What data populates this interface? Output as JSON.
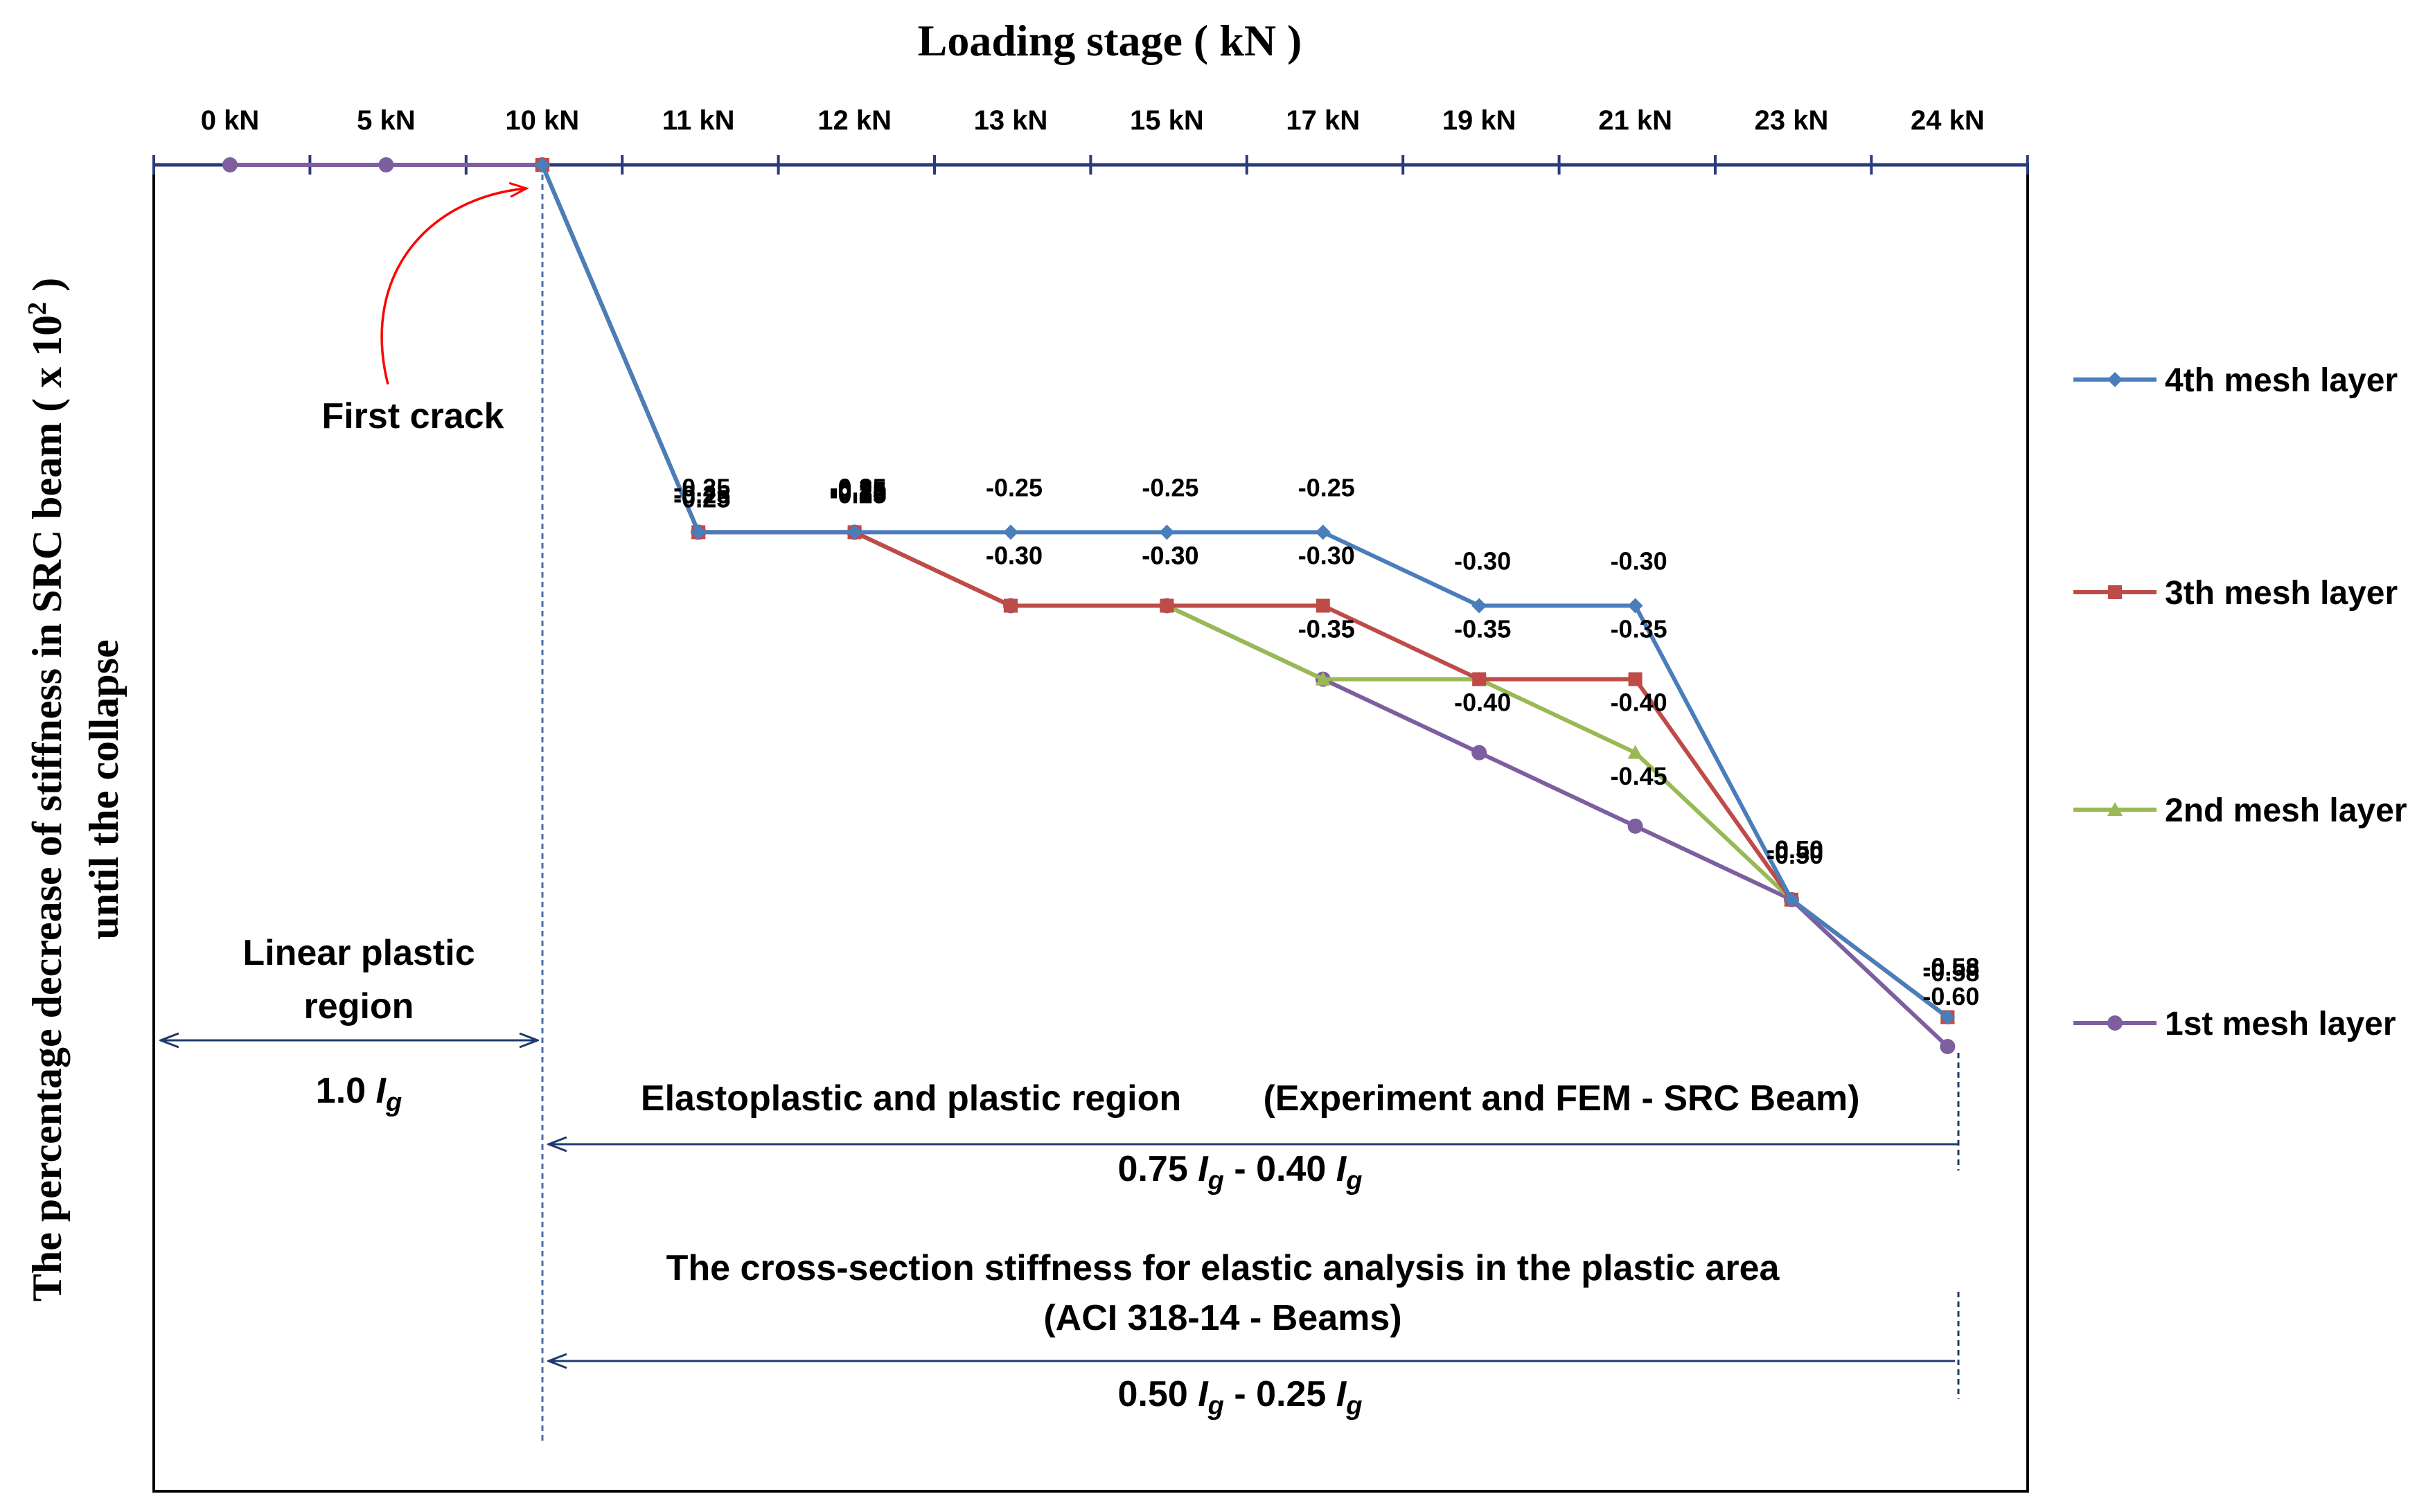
{
  "chart_data": {
    "type": "line",
    "title": "Loading stage  ( kN )",
    "ylabel": {
      "line1_pre": "The percentage decrease of stiffness in SRC beam ( x 10",
      "line1_sup": "2",
      "line1_post": " )",
      "line2": "until the collapse"
    },
    "categories": [
      "0 kN",
      "5 kN",
      "10 kN",
      "11 kN",
      "12 kN",
      "13 kN",
      "15 kN",
      "17 kN",
      "19 kN",
      "21 kN",
      "23 kN",
      "24 kN"
    ],
    "ylim": [
      -0.6,
      0
    ],
    "series": [
      {
        "name": "4th mesh layer",
        "color": "#4a7ebb",
        "marker": "diamond",
        "values": [
          null,
          null,
          0,
          -0.25,
          -0.25,
          -0.25,
          -0.25,
          -0.25,
          -0.3,
          -0.3,
          -0.5,
          -0.58
        ],
        "labels": [
          "",
          "",
          "",
          "-0.25",
          "-0.25",
          "-0.25",
          "-0.25",
          "-0.25",
          "-0.30",
          "-0.30",
          "-0.50",
          "-0.58"
        ]
      },
      {
        "name": "3th mesh layer",
        "color": "#be4b48",
        "marker": "square",
        "values": [
          null,
          null,
          0,
          -0.25,
          -0.25,
          -0.3,
          -0.3,
          -0.3,
          -0.35,
          -0.35,
          -0.5,
          -0.58
        ],
        "labels": [
          "",
          "",
          "",
          "-0.25",
          "-0.25",
          "-0.30",
          "-0.30",
          "-0.30",
          "-0.35",
          "-0.35",
          "-0.50",
          "-0.58"
        ]
      },
      {
        "name": "2nd mesh layer",
        "color": "#98b954",
        "marker": "triangle",
        "values": [
          null,
          null,
          0,
          -0.25,
          -0.25,
          -0.3,
          -0.3,
          -0.35,
          -0.35,
          -0.4,
          -0.5,
          -0.58
        ],
        "labels": [
          "",
          "",
          "",
          "-0.25",
          "-0.25",
          "-0.30",
          "-0.30",
          "-0.35",
          "-0.35",
          "-0.40",
          "-0.50",
          "-0.58"
        ]
      },
      {
        "name": "1st mesh layer",
        "color": "#7d5fa0",
        "marker": "circle",
        "values": [
          0,
          0,
          0,
          -0.25,
          -0.25,
          -0.3,
          -0.3,
          -0.35,
          -0.4,
          -0.45,
          -0.5,
          -0.6
        ],
        "labels": [
          "",
          "",
          "",
          "-0.25",
          "-0.25",
          "-0.30",
          "-0.30",
          "-0.35",
          "-0.40",
          "-0.45",
          "-0.50",
          "-0.60"
        ]
      }
    ],
    "annotations": {
      "first_crack": "First crack",
      "linear_region_line1": "Linear plastic",
      "linear_region_line2": "region",
      "linear_value": "1.0",
      "I_symbol": "I",
      "I_sub": "g",
      "elastoplastic_left": "Elastoplastic and plastic region",
      "elastoplastic_right": "(Experiment and FEM - SRC Beam)",
      "elastoplastic_value_a": "0.75",
      "elastoplastic_value_b": "0.40",
      "aci_line1": "The cross-section stiffness for elastic analysis in the plastic area",
      "aci_line2": "(ACI 318-14  -  Beams)",
      "aci_value_a": "0.50",
      "aci_value_b": "0.25",
      "range_dash": "-"
    },
    "legend_position": "right"
  }
}
